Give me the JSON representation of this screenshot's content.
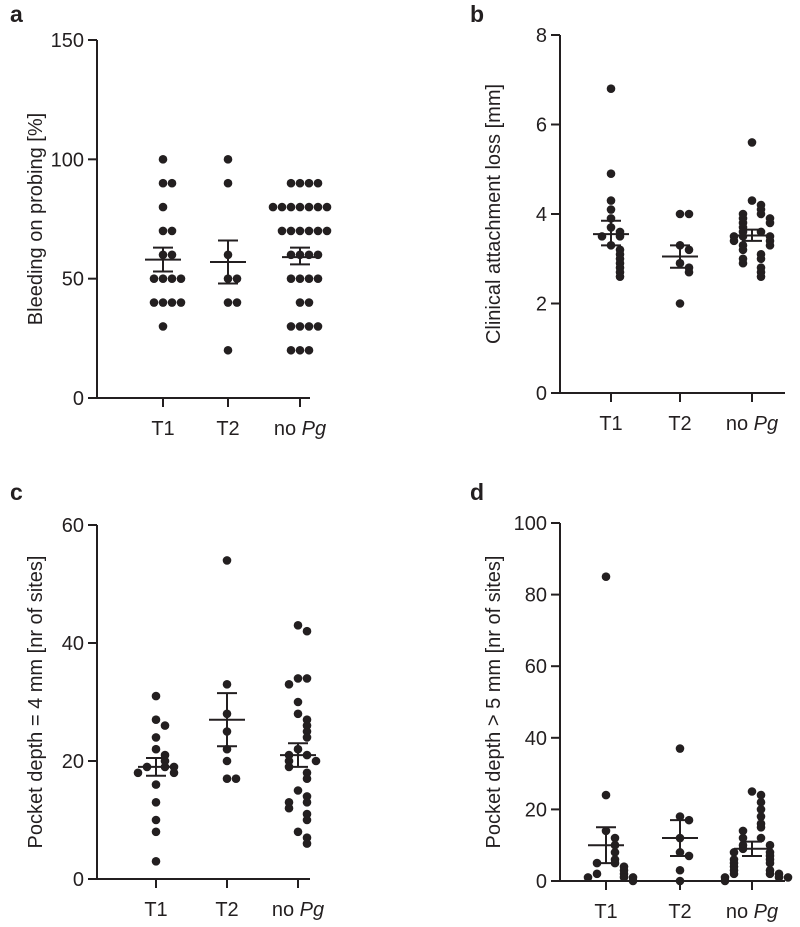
{
  "chart_data": [
    {
      "panel": "a",
      "type": "scatter",
      "ylabel": "Bleeding on probing [%]",
      "ylim": [
        0,
        150
      ],
      "yticks": [
        0,
        50,
        100,
        150
      ],
      "categories": [
        {
          "label": "T1",
          "italic": ""
        },
        {
          "label": "T2",
          "italic": ""
        },
        {
          "label": "no ",
          "italic": "Pg"
        }
      ],
      "groups": [
        {
          "values": [
            100,
            90,
            90,
            80,
            70,
            70,
            60,
            60,
            50,
            50,
            50,
            50,
            40,
            40,
            40,
            40,
            30
          ],
          "mean": 58,
          "sem_low": 53,
          "sem_high": 63
        },
        {
          "values": [
            100,
            90,
            60,
            50,
            50,
            40,
            40,
            20
          ],
          "mean": 57,
          "sem_low": 48,
          "sem_high": 66
        },
        {
          "values": [
            90,
            90,
            90,
            90,
            80,
            80,
            80,
            80,
            80,
            80,
            80,
            70,
            70,
            70,
            70,
            70,
            70,
            60,
            60,
            60,
            60,
            50,
            50,
            50,
            50,
            40,
            40,
            30,
            30,
            30,
            30,
            20,
            20,
            20
          ],
          "mean": 59,
          "sem_low": 56,
          "sem_high": 63
        }
      ]
    },
    {
      "panel": "b",
      "type": "scatter",
      "ylabel": "Clinical attachment loss [mm]",
      "ylim": [
        0,
        8
      ],
      "yticks": [
        0,
        2,
        4,
        6,
        8
      ],
      "categories": [
        {
          "label": "T1",
          "italic": ""
        },
        {
          "label": "T2",
          "italic": ""
        },
        {
          "label": "no ",
          "italic": "Pg"
        }
      ],
      "groups": [
        {
          "values": [
            6.8,
            4.9,
            4.3,
            4.1,
            3.9,
            3.7,
            3.6,
            3.5,
            3.5,
            3.3,
            3.2,
            3.1,
            3.0,
            2.9,
            2.8,
            2.7,
            2.6
          ],
          "mean": 3.55,
          "sem_low": 3.3,
          "sem_high": 3.85
        },
        {
          "values": [
            4.0,
            4.0,
            3.3,
            3.2,
            2.9,
            2.8,
            2.7,
            2.0
          ],
          "mean": 3.05,
          "sem_low": 2.8,
          "sem_high": 3.3
        },
        {
          "values": [
            5.6,
            4.3,
            4.2,
            4.1,
            4.0,
            4.0,
            3.9,
            3.9,
            3.8,
            3.8,
            3.7,
            3.6,
            3.6,
            3.5,
            3.5,
            3.5,
            3.4,
            3.4,
            3.3,
            3.3,
            3.2,
            3.1,
            3.0,
            3.0,
            2.9,
            2.8,
            2.7,
            2.6
          ],
          "mean": 3.52,
          "sem_low": 3.4,
          "sem_high": 3.65
        }
      ]
    },
    {
      "panel": "c",
      "type": "scatter",
      "ylabel": "Pocket depth = 4 mm [nr of sites]",
      "ylim": [
        0,
        60
      ],
      "yticks": [
        0,
        20,
        40,
        60
      ],
      "categories": [
        {
          "label": "T1",
          "italic": ""
        },
        {
          "label": "T2",
          "italic": ""
        },
        {
          "label": "no ",
          "italic": "Pg"
        }
      ],
      "groups": [
        {
          "values": [
            31,
            27,
            26,
            24,
            22,
            21,
            20,
            19,
            19,
            19,
            18,
            18,
            16,
            13,
            10,
            8,
            3
          ],
          "mean": 19,
          "sem_low": 17.5,
          "sem_high": 20.5
        },
        {
          "values": [
            54,
            33,
            28,
            25,
            22,
            20,
            17,
            17
          ],
          "mean": 27,
          "sem_low": 22.5,
          "sem_high": 31.5
        },
        {
          "values": [
            43,
            42,
            34,
            34,
            33,
            30,
            28,
            27,
            26,
            25,
            24,
            22,
            21,
            21,
            20,
            20,
            19,
            18,
            17,
            15,
            14,
            13,
            13,
            12,
            11,
            10,
            8,
            7,
            6
          ],
          "mean": 21,
          "sem_low": 19,
          "sem_high": 23
        }
      ]
    },
    {
      "panel": "d",
      "type": "scatter",
      "ylabel": "Pocket depth > 5 mm [nr of sites]",
      "ylim": [
        0,
        100
      ],
      "yticks": [
        0,
        20,
        40,
        60,
        80,
        100
      ],
      "categories": [
        {
          "label": "T1",
          "italic": ""
        },
        {
          "label": "T2",
          "italic": ""
        },
        {
          "label": "no ",
          "italic": "Pg"
        }
      ],
      "groups": [
        {
          "values": [
            85,
            24,
            14,
            12,
            10,
            8,
            6,
            5,
            5,
            4,
            3,
            2,
            2,
            1,
            1,
            1,
            0
          ],
          "mean": 10,
          "sem_low": 5,
          "sem_high": 15
        },
        {
          "values": [
            37,
            18,
            17,
            12,
            8,
            7,
            3,
            0
          ],
          "mean": 12,
          "sem_low": 7,
          "sem_high": 17
        },
        {
          "values": [
            25,
            24,
            22,
            20,
            18,
            16,
            15,
            14,
            12,
            12,
            10,
            10,
            9,
            8,
            8,
            7,
            6,
            6,
            5,
            5,
            4,
            3,
            3,
            2,
            2,
            2,
            1,
            1,
            1,
            0
          ],
          "mean": 9,
          "sem_low": 7,
          "sem_high": 11
        }
      ]
    }
  ]
}
